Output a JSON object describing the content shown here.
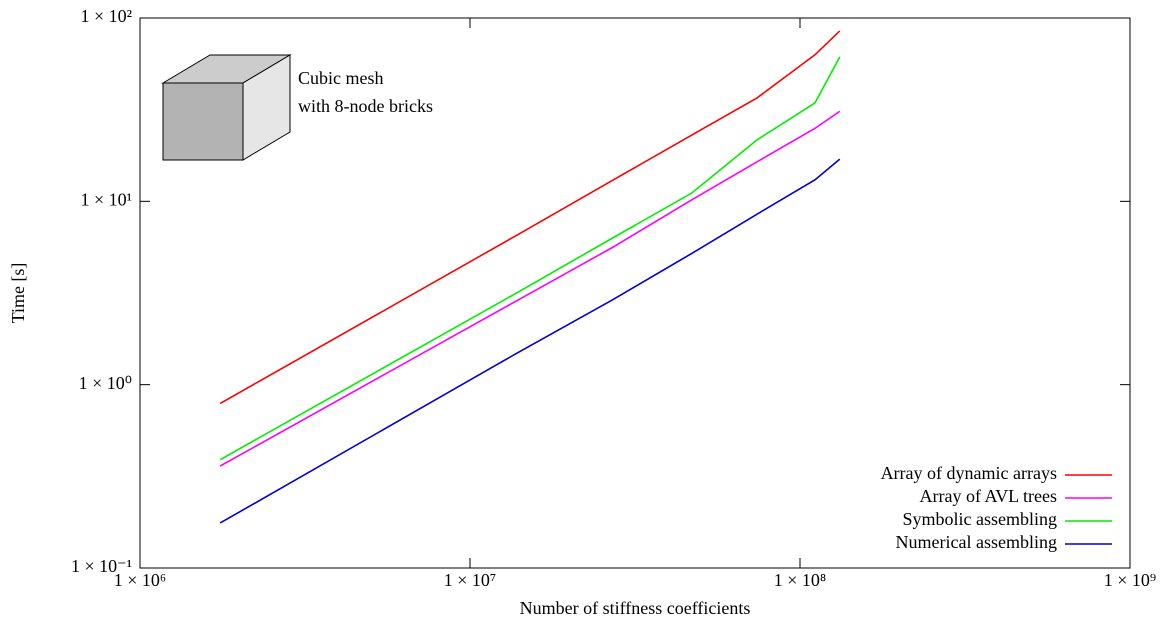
{
  "chart_data": {
    "type": "line",
    "xlabel": "Number of stiffness coefficients",
    "ylabel": "Time [s]",
    "log_x": true,
    "log_y": true,
    "x": [
      1750000,
      14000000,
      27000000,
      47000000,
      74000000,
      111000000,
      132000000
    ],
    "series": [
      {
        "name": "Array of dynamic arrays",
        "color": "#ff0000",
        "values": [
          0.79,
          6.6,
          13,
          23,
          36.6,
          63,
          85
        ]
      },
      {
        "name": "Array of AVL trees",
        "color": "#ff00ff",
        "values": [
          0.36,
          2.9,
          5.6,
          10.2,
          16.4,
          25,
          31
        ]
      },
      {
        "name": "Symbolic assembling",
        "color": "#00ee00",
        "values": [
          0.39,
          3.2,
          6.3,
          11.1,
          21.6,
          34.4,
          61.4
        ]
      },
      {
        "name": "Numerical assembling",
        "color": "#0000dd",
        "values": [
          0.176,
          1.5,
          2.9,
          5.2,
          8.5,
          13.1,
          17
        ]
      }
    ],
    "xlim": [
      1000000,
      1000000000
    ],
    "ylim": [
      0.1,
      100
    ],
    "xticks": [
      {
        "value": 1000000,
        "label": "1 × 10⁶"
      },
      {
        "value": 10000000,
        "label": "1 × 10⁷"
      },
      {
        "value": 100000000,
        "label": "1 × 10⁸"
      },
      {
        "value": 1000000000,
        "label": "1 × 10⁹"
      }
    ],
    "yticks": [
      {
        "value": 0.1,
        "label": "1 × 10⁻¹"
      },
      {
        "value": 1,
        "label": "1 × 10⁰"
      },
      {
        "value": 10,
        "label": "1 × 10¹"
      },
      {
        "value": 100,
        "label": "1 × 10²"
      }
    ],
    "legend": "bottom-right",
    "annotation": [
      "Cubic mesh",
      "with 8-node bricks"
    ]
  }
}
